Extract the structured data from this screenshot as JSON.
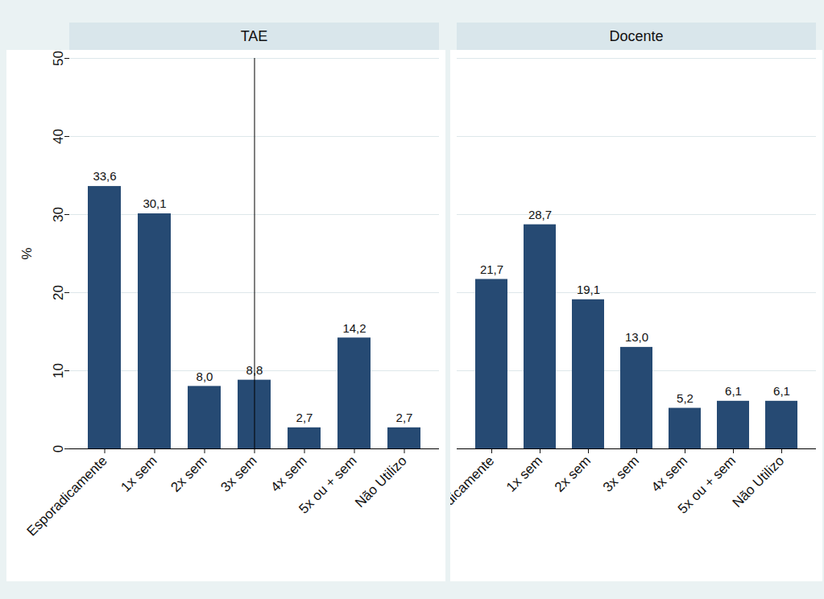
{
  "chart_data": [
    {
      "type": "bar",
      "title": "TAE",
      "ylabel": "%",
      "categories": [
        "Esporadicamente",
        "1x sem",
        "2x sem",
        "3x sem",
        "4x sem",
        "5x ou + sem",
        "Não Utilizo"
      ],
      "values": [
        33.6,
        30.1,
        8.0,
        8.8,
        2.7,
        14.2,
        2.7
      ],
      "value_labels": [
        "33,6",
        "30,1",
        "8,0",
        "8,8",
        "2,7",
        "14,2",
        "2,7"
      ],
      "color": "#264a73",
      "ylim": [
        0,
        50
      ],
      "yticks": [
        0,
        10,
        20,
        30,
        40,
        50
      ],
      "grid": true,
      "data_labels": true
    },
    {
      "type": "bar",
      "title": "Docente",
      "categories": [
        "Esporadicamente",
        "1x sem",
        "2x sem",
        "3x sem",
        "4x sem",
        "5x ou + sem",
        "Não Utilizo"
      ],
      "values": [
        21.7,
        28.7,
        19.1,
        13.0,
        5.2,
        6.1,
        6.1
      ],
      "value_labels": [
        "21,7",
        "28,7",
        "19,1",
        "13,0",
        "5,2",
        "6,1",
        "6,1"
      ],
      "color": "#264a73",
      "ylim": [
        0,
        50
      ],
      "yticks": [
        0,
        10,
        20,
        30,
        40,
        50
      ],
      "grid": true,
      "data_labels": true,
      "tick_labels": "x"
    }
  ]
}
